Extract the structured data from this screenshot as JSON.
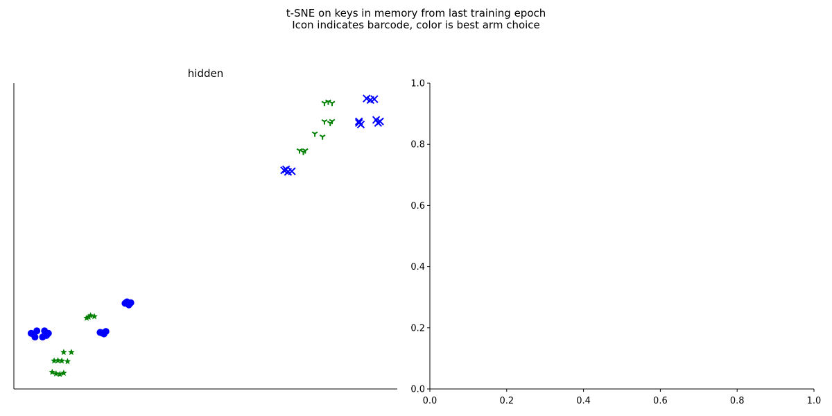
{
  "suptitle": {
    "line1": "t-SNE on keys in memory from last training epoch",
    "line2": "Icon indicates barcode, color is best arm choice"
  },
  "chart_data": [
    {
      "type": "scatter",
      "title": "hidden",
      "xlabel": "",
      "ylabel": "",
      "axes_visible": {
        "left": true,
        "bottom": true,
        "top": false,
        "right": false
      },
      "ticks": false,
      "grid": false,
      "xlim": [
        0,
        1
      ],
      "ylim": [
        0,
        1
      ],
      "colors": {
        "blue": "#0000ff",
        "green": "#008000"
      },
      "series": [
        {
          "marker": "o",
          "color": "#0000ff",
          "points": [
            [
              0.05,
              0.18
            ],
            [
              0.055,
              0.17
            ],
            [
              0.06,
              0.19
            ],
            [
              0.045,
              0.182
            ],
            [
              0.08,
              0.19
            ],
            [
              0.085,
              0.18
            ],
            [
              0.09,
              0.182
            ],
            [
              0.085,
              0.175
            ],
            [
              0.075,
              0.17
            ],
            [
              0.225,
              0.185
            ],
            [
              0.235,
              0.18
            ],
            [
              0.24,
              0.188
            ],
            [
              0.23,
              0.183
            ],
            [
              0.29,
              0.28
            ],
            [
              0.3,
              0.275
            ],
            [
              0.305,
              0.282
            ],
            [
              0.295,
              0.285
            ]
          ]
        },
        {
          "marker": "*",
          "color": "#008000",
          "points": [
            [
              0.105,
              0.092
            ],
            [
              0.115,
              0.093
            ],
            [
              0.125,
              0.092
            ],
            [
              0.14,
              0.09
            ],
            [
              0.13,
              0.12
            ],
            [
              0.15,
              0.12
            ],
            [
              0.1,
              0.055
            ],
            [
              0.11,
              0.05
            ],
            [
              0.12,
              0.048
            ],
            [
              0.13,
              0.052
            ],
            [
              0.195,
              0.235
            ],
            [
              0.2,
              0.24
            ],
            [
              0.21,
              0.237
            ],
            [
              0.19,
              0.232
            ]
          ]
        },
        {
          "marker": "x",
          "color": "#0000ff",
          "points": [
            [
              0.705,
              0.715
            ],
            [
              0.715,
              0.71
            ],
            [
              0.725,
              0.712
            ],
            [
              0.71,
              0.718
            ],
            [
              0.9,
              0.875
            ],
            [
              0.905,
              0.865
            ],
            [
              0.9,
              0.87
            ],
            [
              0.92,
              0.95
            ],
            [
              0.93,
              0.945
            ],
            [
              0.94,
              0.948
            ],
            [
              0.945,
              0.88
            ],
            [
              0.955,
              0.875
            ],
            [
              0.95,
              0.87
            ]
          ]
        },
        {
          "marker": "1",
          "color": "#008000",
          "points": [
            [
              0.745,
              0.78
            ],
            [
              0.755,
              0.775
            ],
            [
              0.76,
              0.78
            ],
            [
              0.785,
              0.835
            ],
            [
              0.805,
              0.825
            ],
            [
              0.81,
              0.875
            ],
            [
              0.825,
              0.87
            ],
            [
              0.83,
              0.876
            ],
            [
              0.81,
              0.935
            ],
            [
              0.82,
              0.94
            ],
            [
              0.83,
              0.935
            ]
          ]
        }
      ]
    },
    {
      "type": "scatter",
      "title": "",
      "xlabel": "",
      "ylabel": "",
      "axes_visible": {
        "left": true,
        "bottom": true,
        "top": false,
        "right": false
      },
      "grid": false,
      "xlim": [
        0,
        1
      ],
      "ylim": [
        0,
        1
      ],
      "xticks": [
        "0.0",
        "0.2",
        "0.4",
        "0.6",
        "0.8",
        "1.0"
      ],
      "yticks": [
        "0.0",
        "0.2",
        "0.4",
        "0.6",
        "0.8",
        "1.0"
      ],
      "series": []
    }
  ]
}
